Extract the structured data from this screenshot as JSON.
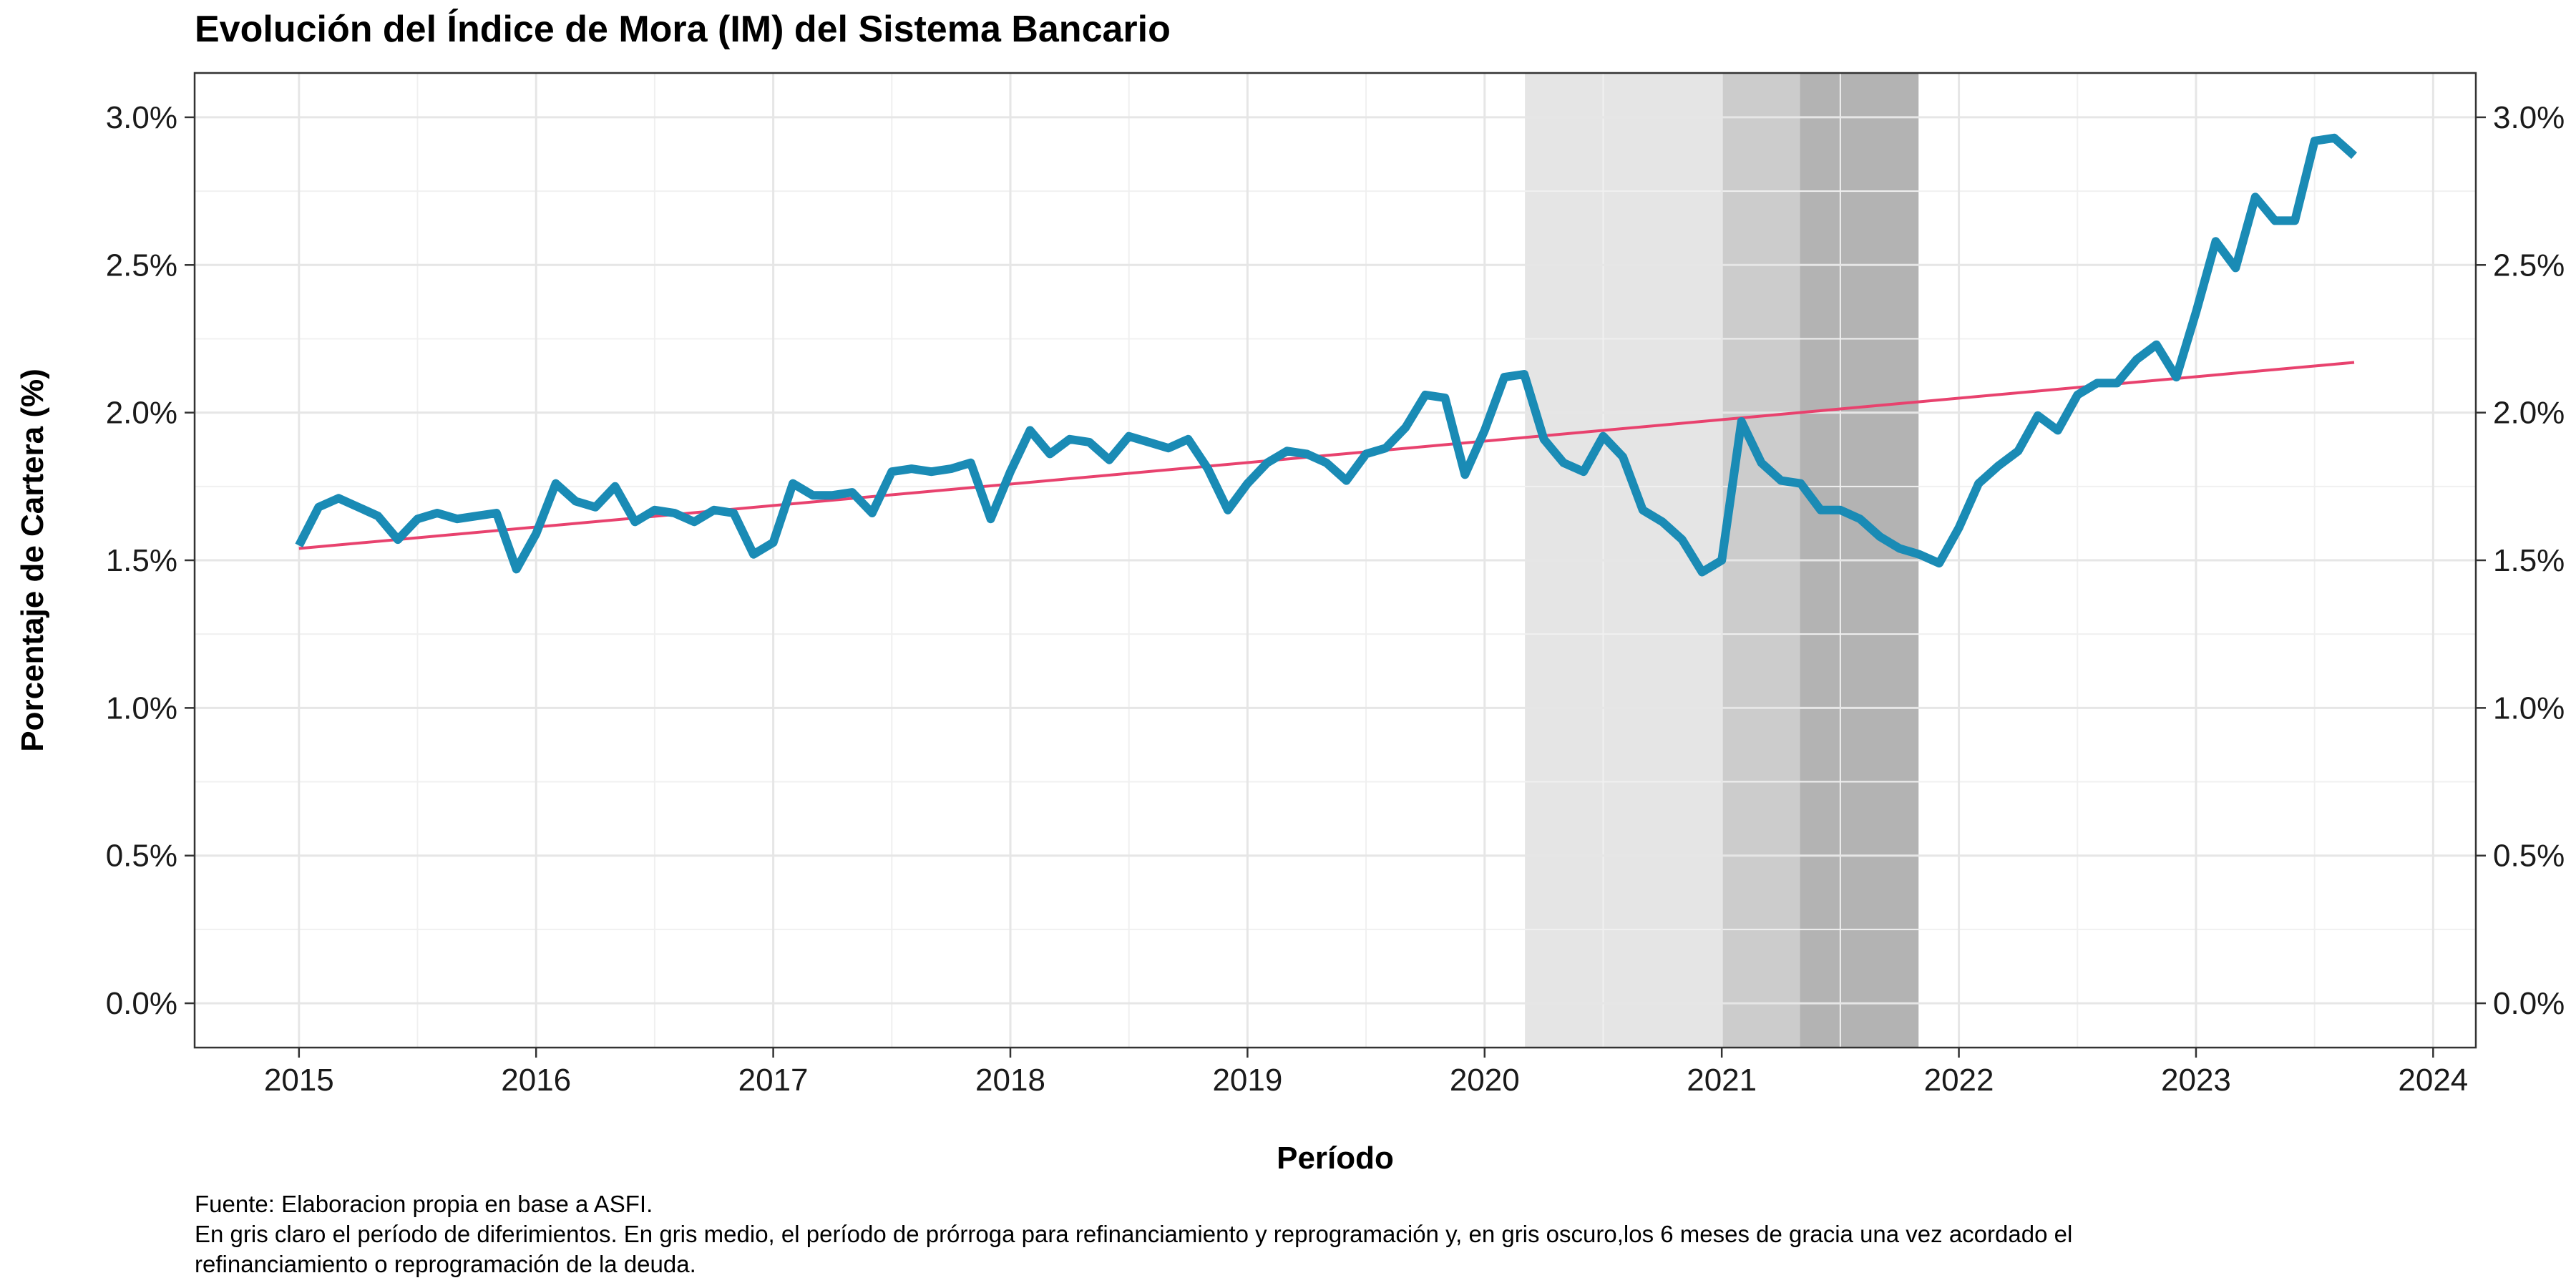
{
  "chart_data": {
    "type": "line",
    "title": "Evolución del Índice de Mora (IM) del Sistema Bancario",
    "xlabel": "Período",
    "ylabel": "Porcentaje de Cartera (%)",
    "x_ticks": [
      "2015",
      "2016",
      "2017",
      "2018",
      "2019",
      "2020",
      "2021",
      "2022",
      "2023",
      "2024"
    ],
    "y_ticks": [
      "0.0%",
      "0.5%",
      "1.0%",
      "1.5%",
      "2.0%",
      "2.5%",
      "3.0%"
    ],
    "xlim": [
      2014.56,
      2024.18
    ],
    "ylim": [
      -0.15,
      3.15
    ],
    "grid": true,
    "secondary_y_axis": true,
    "shaded_periods": [
      {
        "start": 2020.17,
        "end": 2021.0,
        "color": "#e5e5e5"
      },
      {
        "start": 2021.0,
        "end": 2021.33,
        "color": "#cccccc"
      },
      {
        "start": 2021.33,
        "end": 2021.83,
        "color": "#b3b3b3"
      }
    ],
    "series": [
      {
        "color": "#1a8bb5",
        "x": [
          2015.0,
          2015.083,
          2015.167,
          2015.25,
          2015.333,
          2015.417,
          2015.5,
          2015.583,
          2015.667,
          2015.75,
          2015.833,
          2015.917,
          2016.0,
          2016.083,
          2016.167,
          2016.25,
          2016.333,
          2016.417,
          2016.5,
          2016.583,
          2016.667,
          2016.75,
          2016.833,
          2016.917,
          2017.0,
          2017.083,
          2017.167,
          2017.25,
          2017.333,
          2017.417,
          2017.5,
          2017.583,
          2017.667,
          2017.75,
          2017.833,
          2017.917,
          2018.0,
          2018.083,
          2018.167,
          2018.25,
          2018.333,
          2018.417,
          2018.5,
          2018.583,
          2018.667,
          2018.75,
          2018.833,
          2018.917,
          2019.0,
          2019.083,
          2019.167,
          2019.25,
          2019.333,
          2019.417,
          2019.5,
          2019.583,
          2019.667,
          2019.75,
          2019.833,
          2019.917,
          2020.0,
          2020.083,
          2020.167,
          2020.25,
          2020.333,
          2020.417,
          2020.5,
          2020.583,
          2020.667,
          2020.75,
          2020.833,
          2020.917,
          2021.0,
          2021.083,
          2021.167,
          2021.25,
          2021.333,
          2021.417,
          2021.5,
          2021.583,
          2021.667,
          2021.75,
          2021.833,
          2021.917,
          2022.0,
          2022.083,
          2022.167,
          2022.25,
          2022.333,
          2022.417,
          2022.5,
          2022.583,
          2022.667,
          2022.75,
          2022.833,
          2022.917,
          2023.0,
          2023.083,
          2023.167,
          2023.25,
          2023.333,
          2023.417,
          2023.5,
          2023.583,
          2023.667
        ],
        "y": [
          1.55,
          1.68,
          1.71,
          1.68,
          1.65,
          1.57,
          1.64,
          1.66,
          1.64,
          1.65,
          1.66,
          1.47,
          1.59,
          1.76,
          1.7,
          1.68,
          1.75,
          1.63,
          1.67,
          1.66,
          1.63,
          1.67,
          1.66,
          1.52,
          1.56,
          1.76,
          1.72,
          1.72,
          1.73,
          1.66,
          1.8,
          1.81,
          1.8,
          1.81,
          1.83,
          1.64,
          1.8,
          1.94,
          1.86,
          1.91,
          1.9,
          1.84,
          1.92,
          1.9,
          1.88,
          1.91,
          1.81,
          1.67,
          1.76,
          1.83,
          1.87,
          1.86,
          1.83,
          1.77,
          1.86,
          1.88,
          1.95,
          2.06,
          2.05,
          1.79,
          1.94,
          2.12,
          2.13,
          1.91,
          1.83,
          1.8,
          1.92,
          1.85,
          1.67,
          1.63,
          1.57,
          1.46,
          1.5,
          1.97,
          1.83,
          1.77,
          1.76,
          1.67,
          1.67,
          1.64,
          1.58,
          1.54,
          1.52,
          1.49,
          1.61,
          1.76,
          1.82,
          1.87,
          1.99,
          1.94,
          2.06,
          2.1,
          2.1,
          2.18,
          2.23,
          2.12,
          2.34,
          2.58,
          2.49,
          2.73,
          2.65,
          2.65,
          2.92,
          2.93,
          2.87
        ]
      }
    ],
    "trend": {
      "color": "#e8426e",
      "x": [
        2015.0,
        2023.667
      ],
      "y": [
        1.54,
        2.17
      ]
    }
  },
  "caption": {
    "source": "Fuente: Elaboracion propia en base a ASFI.",
    "note_line1": "En gris claro el período de diferimientos. En gris medio, el período de prórroga para refinanciamiento y reprogramación y, en gris oscuro,los 6 meses de gracia una vez acordado el",
    "note_line2": "refinanciamiento o reprogramación de la deuda."
  }
}
